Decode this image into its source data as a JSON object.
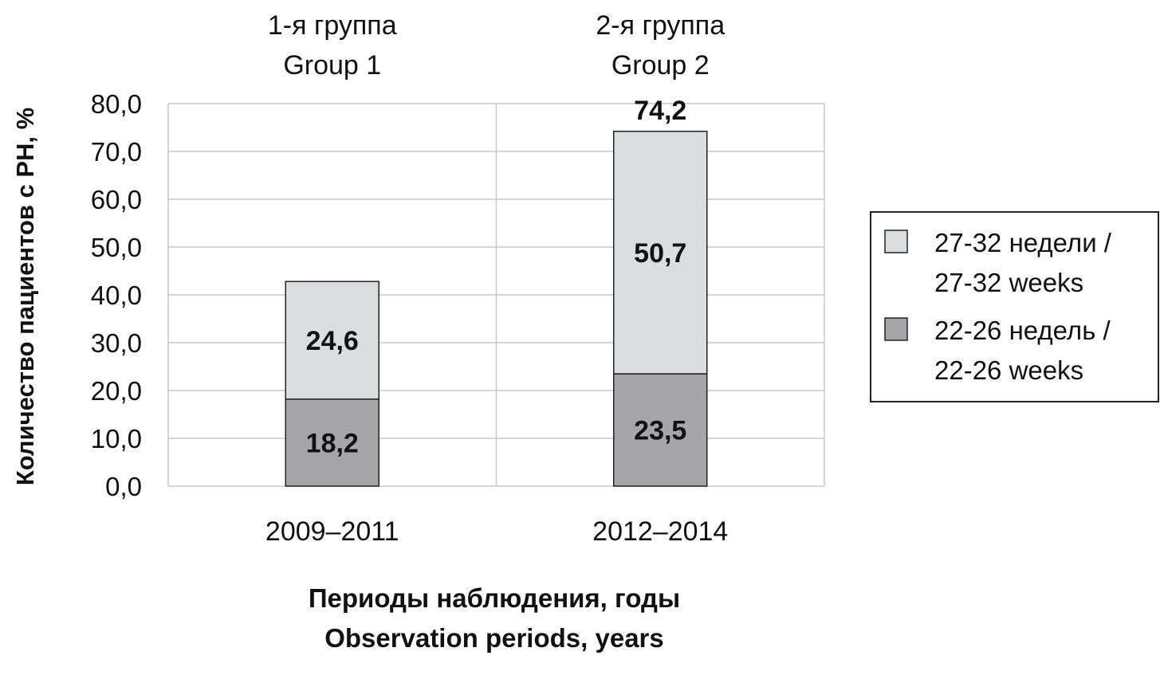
{
  "chart_data": {
    "type": "bar",
    "stacked": true,
    "categories": [
      "2009–2011",
      "2012–2014"
    ],
    "group_headers": [
      [
        "1-я группа",
        "Group 1"
      ],
      [
        "2-я группа",
        "Group 2"
      ]
    ],
    "series": [
      {
        "name": "22-26 недель / 22-26 weeks",
        "legend_lines": [
          "22-26 недель /",
          "22-26 weeks"
        ],
        "values": [
          18.2,
          23.5
        ],
        "labels": [
          "18,2",
          "23,5"
        ],
        "color": "#a6a6a8"
      },
      {
        "name": "27-32 недели / 27-32 weeks",
        "legend_lines": [
          "27-32 недели /",
          "27-32 weeks"
        ],
        "values": [
          24.6,
          50.7
        ],
        "labels": [
          "24,6",
          "50,7"
        ],
        "color": "#dcdddf"
      }
    ],
    "totals": [
      null,
      "74,2"
    ],
    "ylabel": "Количество пациентов с РН, %",
    "xlabel_lines": [
      "Периоды наблюдения, годы",
      "Observation periods, years"
    ],
    "ylim": [
      0,
      80
    ],
    "yticks": [
      "0,0",
      "10,0",
      "20,0",
      "30,0",
      "40,0",
      "50,0",
      "60,0",
      "70,0",
      "80,0"
    ],
    "grid": true,
    "legend_position": "right"
  }
}
